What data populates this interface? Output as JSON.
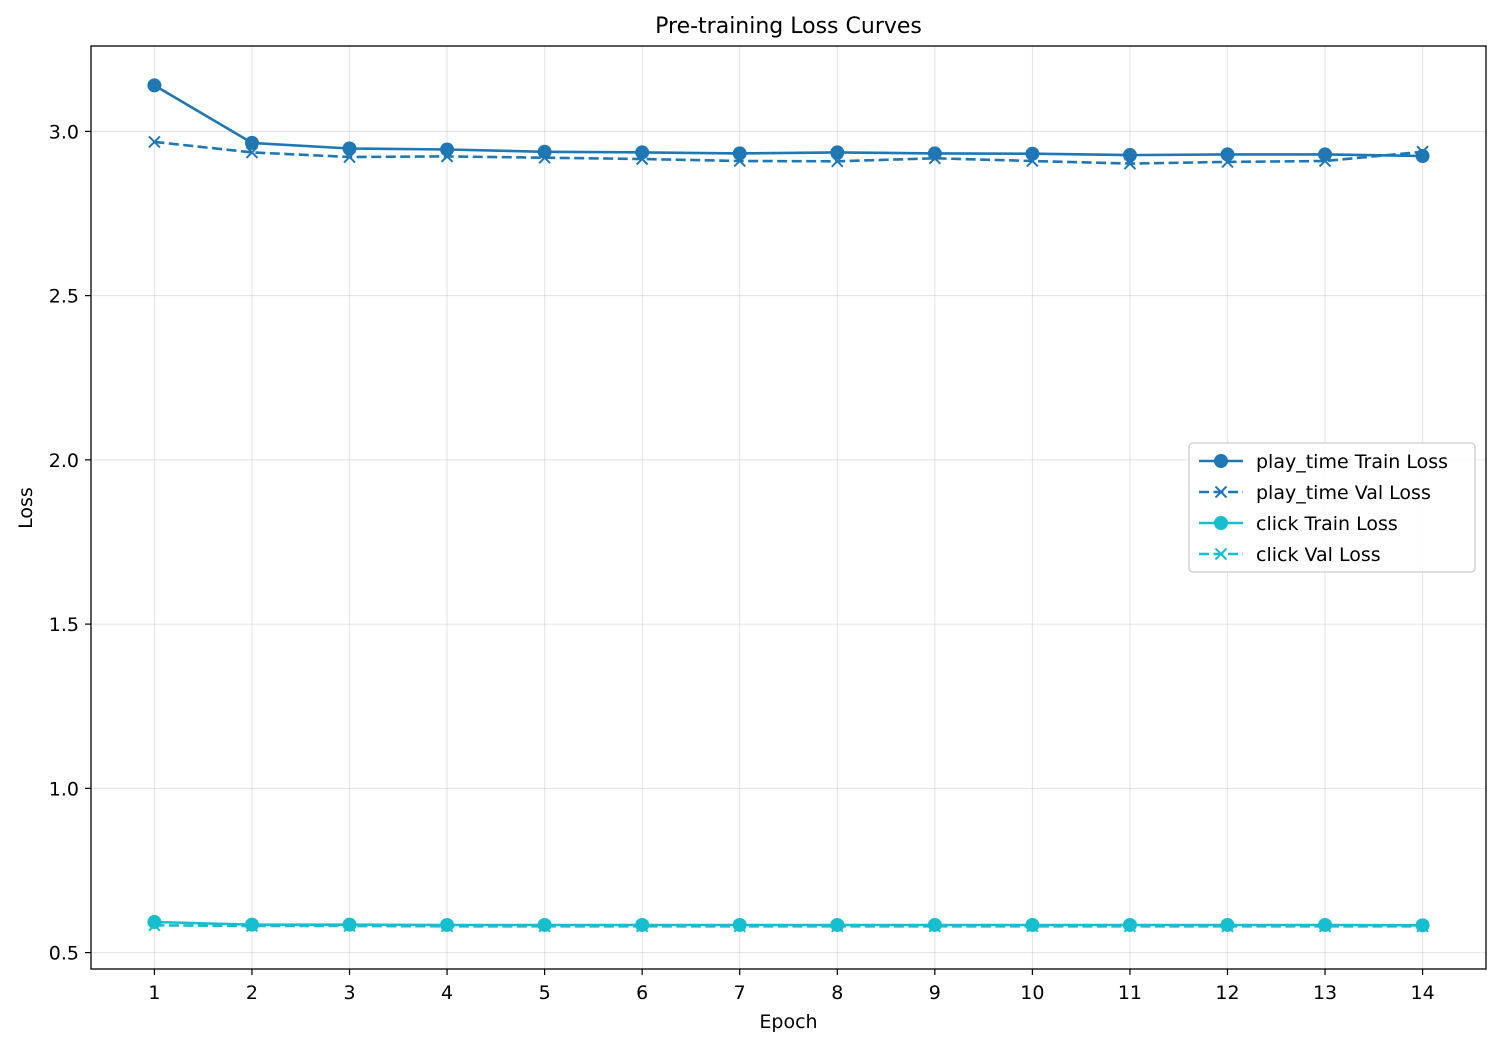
{
  "chart_data": {
    "type": "line",
    "title": "Pre-training Loss Curves",
    "xlabel": "Epoch",
    "ylabel": "Loss",
    "x": [
      1,
      2,
      3,
      4,
      5,
      6,
      7,
      8,
      9,
      10,
      11,
      12,
      13,
      14
    ],
    "xticks": [
      "1",
      "2",
      "3",
      "4",
      "5",
      "6",
      "7",
      "8",
      "9",
      "10",
      "11",
      "12",
      "13",
      "14"
    ],
    "yticks": [
      "0.5",
      "1.0",
      "1.5",
      "2.0",
      "2.5",
      "3.0"
    ],
    "ylim": [
      0.45,
      3.26
    ],
    "xlim": [
      0.35,
      14.65
    ],
    "grid": true,
    "legend_position": "center-right",
    "series": [
      {
        "name": "play_time Train Loss",
        "color": "#1f77b4",
        "line": "solid",
        "marker": "circle",
        "values": [
          3.14,
          2.965,
          2.948,
          2.945,
          2.938,
          2.936,
          2.933,
          2.936,
          2.933,
          2.932,
          2.928,
          2.93,
          2.93,
          2.925
        ]
      },
      {
        "name": "play_time Val Loss",
        "color": "#1f77b4",
        "line": "dashed",
        "marker": "x",
        "values": [
          2.968,
          2.936,
          2.922,
          2.924,
          2.92,
          2.916,
          2.91,
          2.909,
          2.918,
          2.91,
          2.902,
          2.907,
          2.91,
          2.938
        ]
      },
      {
        "name": "click Train Loss",
        "color": "#17becf",
        "line": "solid",
        "marker": "circle",
        "values": [
          0.593,
          0.585,
          0.585,
          0.584,
          0.584,
          0.584,
          0.584,
          0.584,
          0.584,
          0.584,
          0.584,
          0.584,
          0.584,
          0.583
        ]
      },
      {
        "name": "click Val Loss",
        "color": "#17becf",
        "line": "dashed",
        "marker": "x",
        "values": [
          0.583,
          0.581,
          0.581,
          0.58,
          0.58,
          0.58,
          0.58,
          0.58,
          0.58,
          0.58,
          0.58,
          0.58,
          0.58,
          0.58
        ]
      }
    ]
  }
}
